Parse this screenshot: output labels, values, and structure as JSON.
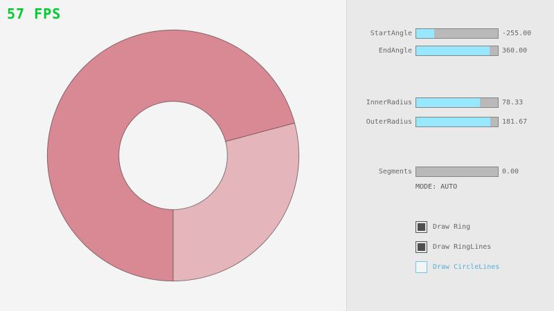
{
  "fps": {
    "text": "57 FPS",
    "color": "#00cc30"
  },
  "ring": {
    "colors": {
      "single_pass": "#e5b5bc",
      "double_pass": "#d98994",
      "outline": "rgba(0,0,0,0.45)",
      "background": "#f4f4f4"
    }
  },
  "panel": {
    "accent_fill": "#97e8ff",
    "sliders": [
      {
        "label": "StartAngle",
        "value": "-255.00",
        "fill_percent": 21.7
      },
      {
        "label": "EndAngle",
        "value": "360.00",
        "fill_percent": 90.0
      },
      {
        "label": "InnerRadius",
        "value": "78.33",
        "fill_percent": 78.3
      },
      {
        "label": "OuterRadius",
        "value": "181.67",
        "fill_percent": 90.8
      },
      {
        "label": "Segments",
        "value": "0.00",
        "fill_percent": 0
      }
    ],
    "mode_text": "MODE: AUTO",
    "checkboxes": [
      {
        "label": "Draw Ring",
        "checked": true
      },
      {
        "label": "Draw RingLines",
        "checked": true
      },
      {
        "label": "Draw CircleLines",
        "checked": false
      }
    ]
  }
}
